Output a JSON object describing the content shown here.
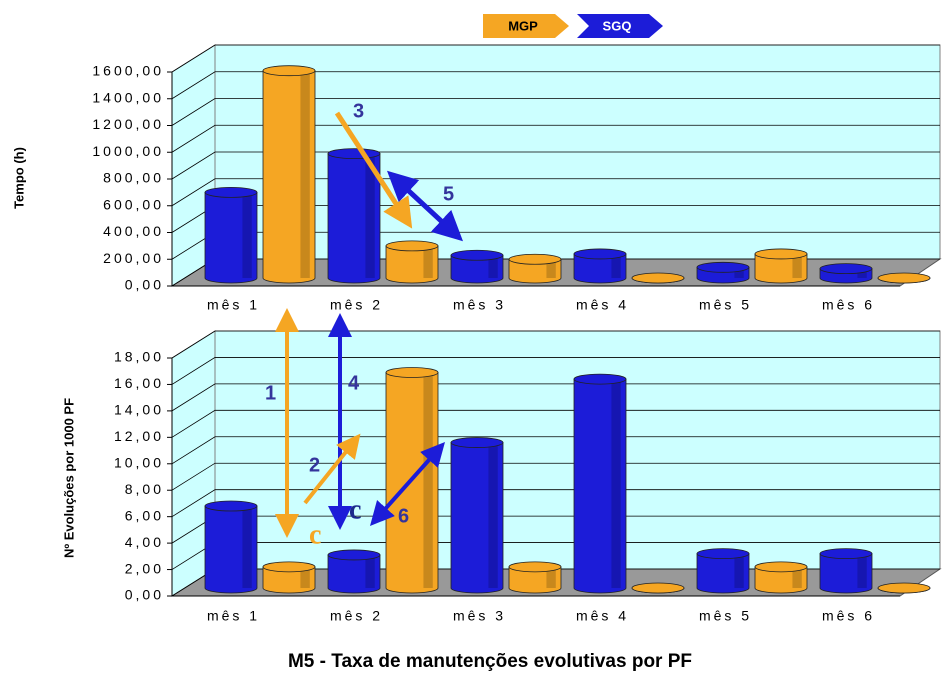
{
  "chart_data": [
    {
      "type": "bar3d",
      "ylabel": "Tempo (h)",
      "categories": [
        "mês 1",
        "mês 2",
        "mês 3",
        "mês 4",
        "mês 5",
        "mês 6"
      ],
      "series": [
        {
          "name": "SGQ",
          "color": "#1c1cd8",
          "values": [
            640,
            930,
            170,
            180,
            80,
            70
          ]
        },
        {
          "name": "MGP",
          "color": "#f5a623",
          "values": [
            1550,
            240,
            140,
            0,
            180,
            0
          ]
        }
      ],
      "ylim": [
        0,
        1600
      ],
      "yticks": [
        {
          "value": 0,
          "label": "0,00"
        },
        {
          "value": 200,
          "label": "200,00"
        },
        {
          "value": 400,
          "label": "400,00"
        },
        {
          "value": 600,
          "label": "600,00"
        },
        {
          "value": 800,
          "label": "800,00"
        },
        {
          "value": 1000,
          "label": "1000,00"
        },
        {
          "value": 1200,
          "label": "1200,00"
        },
        {
          "value": 1400,
          "label": "1400,00"
        },
        {
          "value": 1600,
          "label": "1600,00"
        }
      ],
      "grid": true
    },
    {
      "type": "bar3d",
      "ylabel": "Nº Evoluções por 1000 PF",
      "title": "M5 - Taxa de manutenções evolutivas por PF",
      "categories": [
        "mês 1",
        "mês 2",
        "mês 3",
        "mês 4",
        "mês 5",
        "mês 6"
      ],
      "series": [
        {
          "color": "#1c1cd8",
          "values": [
            6.2,
            2.5,
            11.0,
            15.8,
            2.6,
            2.6
          ]
        },
        {
          "color": "#f5a623",
          "values": [
            1.6,
            16.3,
            1.6,
            0,
            1.6,
            0
          ]
        }
      ],
      "ylim": [
        0,
        18
      ],
      "yticks": [
        {
          "value": 0,
          "label": "0,00"
        },
        {
          "value": 2,
          "label": "2,00"
        },
        {
          "value": 4,
          "label": "4,00"
        },
        {
          "value": 6,
          "label": "6,00"
        },
        {
          "value": 8,
          "label": "8,00"
        },
        {
          "value": 10,
          "label": "10,00"
        },
        {
          "value": 12,
          "label": "12,00"
        },
        {
          "value": 14,
          "label": "14,00"
        },
        {
          "value": 16,
          "label": "16,00"
        },
        {
          "value": 18,
          "label": "18,00"
        }
      ],
      "grid": true
    }
  ],
  "annotations": [
    "1",
    "2",
    "3",
    "4",
    "5",
    "6",
    "c",
    "c"
  ]
}
